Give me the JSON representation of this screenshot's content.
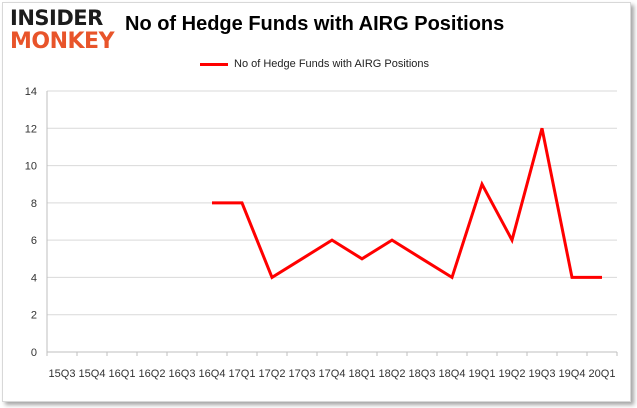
{
  "brand": {
    "logo_top": "INSIDER",
    "logo_bottom": "MONKEY"
  },
  "colors": {
    "line": "#ff0000",
    "grid": "#d9d9d9",
    "axis": "#bfbfbf",
    "logo_accent": "#e8542a"
  },
  "chart_data": {
    "type": "line",
    "title": "No of Hedge Funds with AIRG Positions",
    "xlabel": "",
    "ylabel": "",
    "ylim": [
      0,
      14
    ],
    "yticks": [
      0,
      2,
      4,
      6,
      8,
      10,
      12,
      14
    ],
    "grid": "horizontal",
    "legend_position": "top",
    "categories": [
      "15Q3",
      "15Q4",
      "16Q1",
      "16Q2",
      "16Q3",
      "16Q4",
      "17Q1",
      "17Q2",
      "17Q3",
      "17Q4",
      "18Q1",
      "18Q2",
      "18Q3",
      "18Q4",
      "19Q1",
      "19Q2",
      "19Q3",
      "19Q4",
      "20Q1"
    ],
    "series": [
      {
        "name": "No of Hedge Funds with AIRG Positions",
        "values": [
          null,
          null,
          null,
          null,
          null,
          8,
          8,
          4,
          5,
          6,
          5,
          6,
          5,
          4,
          9,
          6,
          12,
          4,
          4
        ]
      }
    ]
  }
}
